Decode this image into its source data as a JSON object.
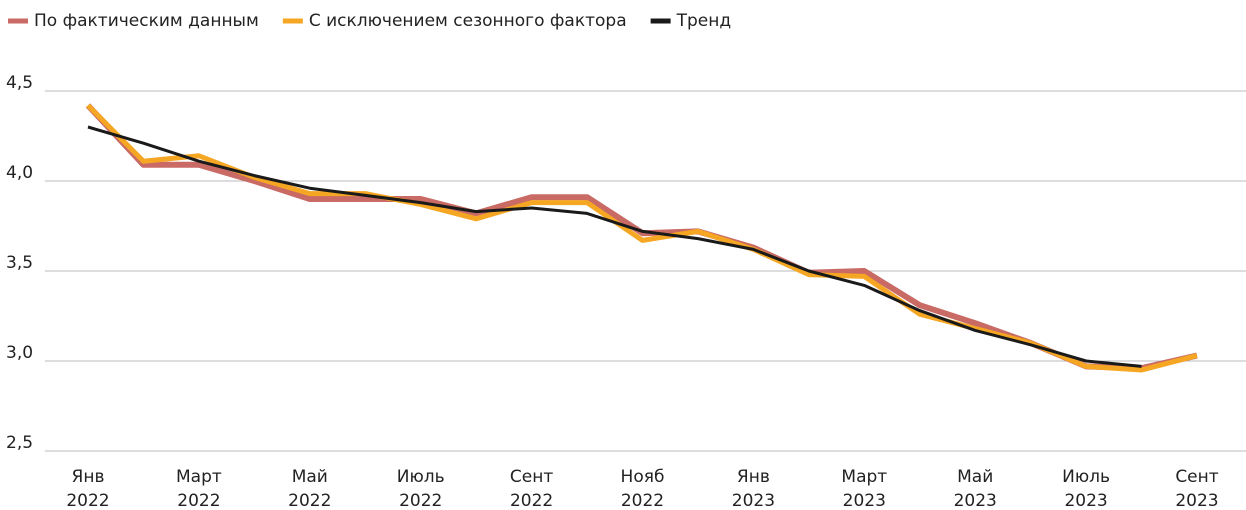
{
  "chart_data": {
    "type": "line",
    "categories": [
      "Янв 2022",
      null,
      "Март 2022",
      null,
      "Май 2022",
      null,
      "Июль 2022",
      null,
      "Сент 2022",
      null,
      "Нояб 2022",
      null,
      "Янв 2023",
      null,
      "Март 2023",
      null,
      "Май 2023",
      null,
      "Июль 2023",
      null,
      "Сент 2023"
    ],
    "series": [
      {
        "name": "По фактическим данным",
        "color": "#c96a64",
        "width": 6,
        "values": [
          4.42,
          4.09,
          4.09,
          4.0,
          3.9,
          3.9,
          3.9,
          3.82,
          3.91,
          3.91,
          3.71,
          3.72,
          3.63,
          3.49,
          3.5,
          3.31,
          3.21,
          3.1,
          2.97,
          2.96,
          3.03
        ]
      },
      {
        "name": "С исключением сезонного фактора",
        "color": "#f5a623",
        "width": 5,
        "values": [
          4.42,
          4.11,
          4.14,
          4.02,
          3.93,
          3.93,
          3.87,
          3.79,
          3.88,
          3.88,
          3.67,
          3.72,
          3.62,
          3.48,
          3.47,
          3.26,
          3.18,
          3.1,
          2.97,
          2.95,
          3.03
        ]
      },
      {
        "name": "Тренд",
        "color": "#1a1a1a",
        "width": 3,
        "values": [
          4.3,
          4.21,
          4.11,
          4.03,
          3.96,
          3.92,
          3.88,
          3.83,
          3.85,
          3.82,
          3.72,
          3.68,
          3.62,
          3.5,
          3.42,
          3.28,
          3.17,
          3.09,
          3.0,
          2.97,
          null
        ]
      }
    ],
    "ylim": [
      2.5,
      4.5
    ],
    "yticks": [
      {
        "value": 2.5,
        "label": "2,5"
      },
      {
        "value": 3.0,
        "label": "3,0"
      },
      {
        "value": 3.5,
        "label": "3,5"
      },
      {
        "value": 4.0,
        "label": "4,0"
      },
      {
        "value": 4.5,
        "label": "4,5"
      }
    ],
    "grid": true,
    "legend": "top-left"
  }
}
